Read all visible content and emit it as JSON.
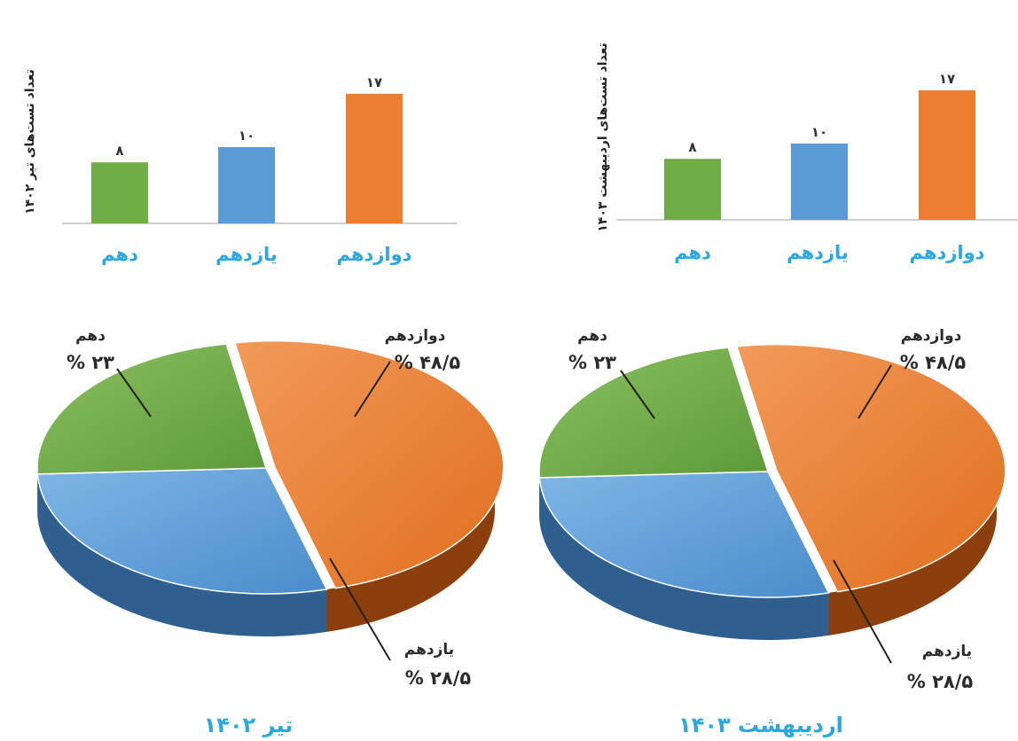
{
  "colors": {
    "dahom": "#70ad47",
    "yazdahom": "#5b9bd5",
    "davazdahom": "#ed7d31",
    "label": "#29a9e0"
  },
  "chart_data": [
    {
      "type": "bar",
      "ylabel": "تعداد تست‌های تیر ۱۴۰۲",
      "categories": [
        "دهم",
        "یازدهم",
        "دوازدهم"
      ],
      "values": [
        8,
        10,
        17
      ],
      "value_labels": [
        "۸",
        "۱۰",
        "۱۷"
      ],
      "grid": false
    },
    {
      "type": "bar",
      "ylabel": "تعداد تست‌های اردیبهشت ۱۴۰۳",
      "categories": [
        "دهم",
        "یازدهم",
        "دوازدهم"
      ],
      "values": [
        8,
        10,
        17
      ],
      "value_labels": [
        "۸",
        "۱۰",
        "۱۷"
      ],
      "grid": false
    },
    {
      "type": "pie",
      "title": "تیر ۱۴۰۲",
      "slices": [
        {
          "label": "دوازدهم",
          "value": 48.5,
          "pct_text": "۴۸/۵ %"
        },
        {
          "label": "یازدهم",
          "value": 28.5,
          "pct_text": "۲۸/۵ %"
        },
        {
          "label": "دهم",
          "value": 23,
          "pct_text": "۲۳ %"
        }
      ]
    },
    {
      "type": "pie",
      "title": "اردیبهشت ۱۴۰۳",
      "slices": [
        {
          "label": "دوازدهم",
          "value": 48.5,
          "pct_text": "۴۸/۵ %"
        },
        {
          "label": "یازدهم",
          "value": 28.5,
          "pct_text": "۲۸/۵ %"
        },
        {
          "label": "دهم",
          "value": 23,
          "pct_text": "۲۳ %"
        }
      ]
    }
  ]
}
